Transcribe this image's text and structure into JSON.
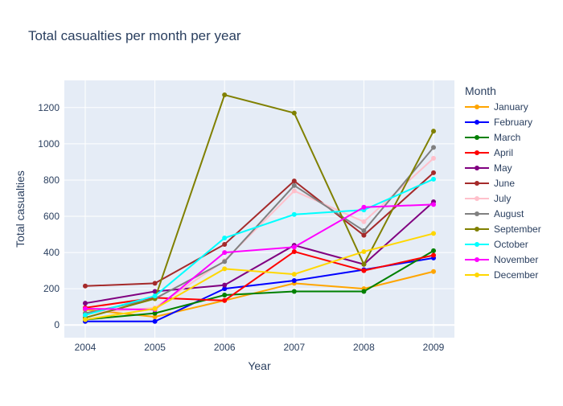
{
  "chart_data": {
    "type": "line",
    "title": "Total casualties per month per year",
    "xlabel": "Year",
    "ylabel": "Total casualties",
    "x": [
      2004,
      2005,
      2006,
      2007,
      2008,
      2009
    ],
    "x_ticks": [
      "2004",
      "2005",
      "2006",
      "2007",
      "2008",
      "2009"
    ],
    "y_ticks": [
      0,
      200,
      400,
      600,
      800,
      1000,
      1200
    ],
    "xlim": [
      2003.7,
      2009.3
    ],
    "ylim": [
      -70,
      1350
    ],
    "legend_title": "Month",
    "legend_position": "right",
    "grid": true,
    "background_color": "#e5ecf6",
    "series": [
      {
        "name": "January",
        "color": "#FFA500",
        "values": [
          85,
          45,
          135,
          230,
          200,
          295
        ]
      },
      {
        "name": "February",
        "color": "#0000FF",
        "values": [
          20,
          20,
          200,
          245,
          305,
          370
        ]
      },
      {
        "name": "March",
        "color": "#008000",
        "values": [
          30,
          65,
          165,
          185,
          185,
          410
        ]
      },
      {
        "name": "April",
        "color": "#FF0000",
        "values": [
          95,
          150,
          135,
          405,
          300,
          385
        ]
      },
      {
        "name": "May",
        "color": "#800080",
        "values": [
          120,
          185,
          220,
          440,
          335,
          680
        ]
      },
      {
        "name": "June",
        "color": "#A52A2A",
        "values": [
          215,
          230,
          445,
          795,
          495,
          840
        ]
      },
      {
        "name": "July",
        "color": "#FFC0CB",
        "values": [
          65,
          95,
          355,
          740,
          570,
          920
        ]
      },
      {
        "name": "August",
        "color": "#808080",
        "values": [
          65,
          145,
          350,
          770,
          520,
          980
        ]
      },
      {
        "name": "September",
        "color": "#808000",
        "values": [
          40,
          145,
          1270,
          1170,
          335,
          1070
        ]
      },
      {
        "name": "October",
        "color": "#00FFFF",
        "values": [
          55,
          160,
          480,
          610,
          635,
          805
        ]
      },
      {
        "name": "November",
        "color": "#FF00FF",
        "values": [
          90,
          85,
          400,
          430,
          650,
          665
        ]
      },
      {
        "name": "December",
        "color": "#FFD700",
        "values": [
          30,
          90,
          310,
          280,
          405,
          505
        ]
      }
    ]
  }
}
